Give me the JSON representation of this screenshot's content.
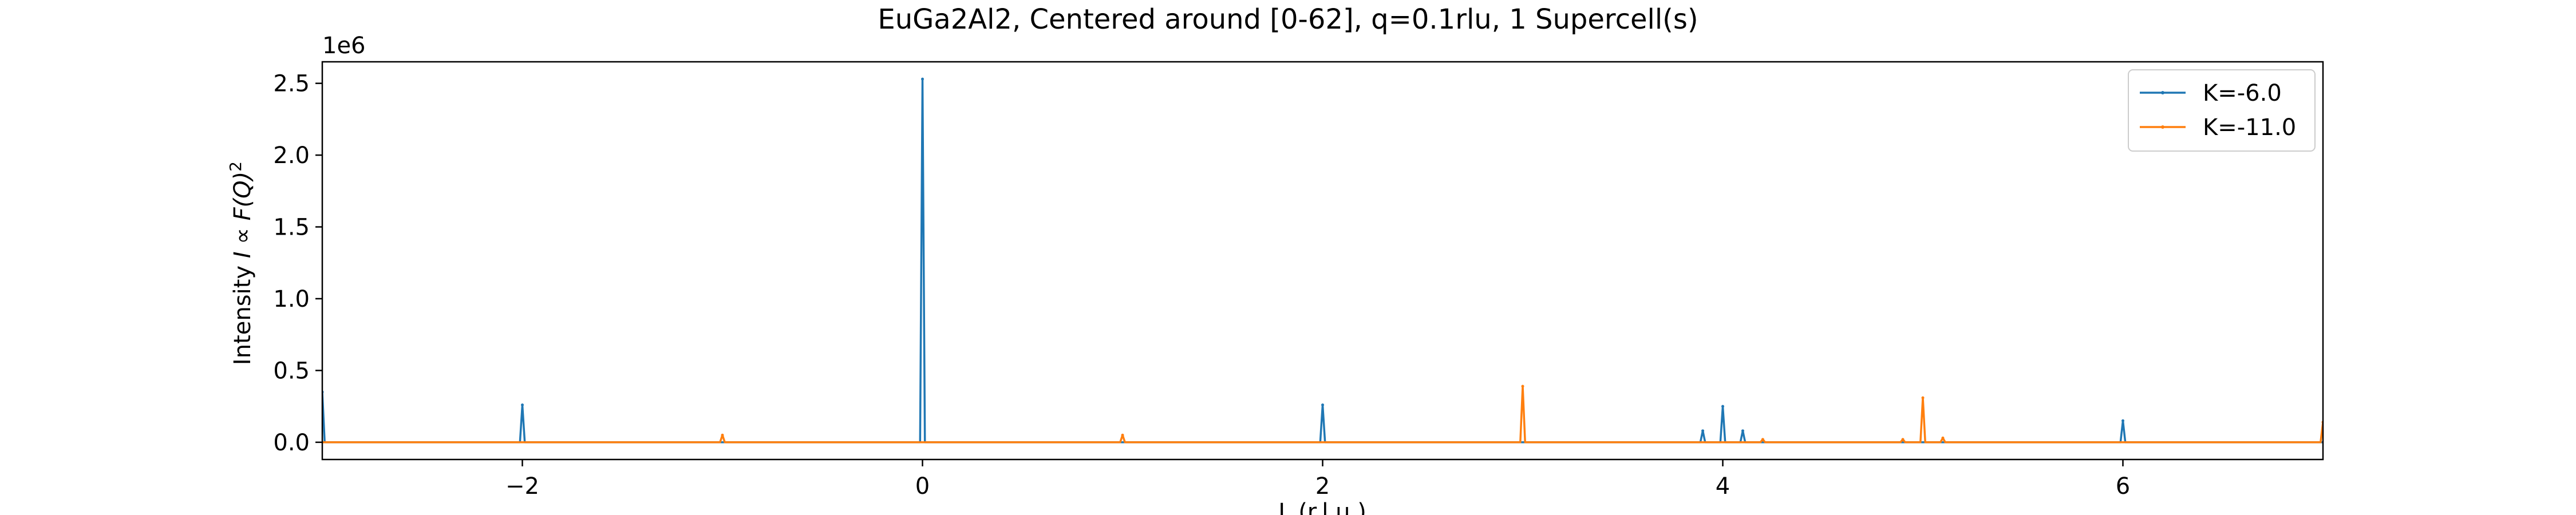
{
  "chart_data": {
    "type": "line",
    "title": "EuGa2Al2, Centered around [0-62], q=0.1rlu, 1 Supercell(s)",
    "xlabel": "L (r.l.u.)",
    "ylabel_prefix": "Intensity ",
    "ylabel_math": "I ∝ F(Q)",
    "ylabel_power": "2",
    "y_offset_label": "1e6",
    "xlim": [
      -3.0,
      7.0
    ],
    "ylim": [
      -0.12,
      2.65
    ],
    "y_scale_factor": 1000000,
    "xticks": [
      -2,
      0,
      2,
      4,
      6
    ],
    "xtick_labels": [
      "−2",
      "0",
      "2",
      "4",
      "6"
    ],
    "yticks": [
      0.0,
      0.5,
      1.0,
      1.5,
      2.0,
      2.5
    ],
    "ytick_labels": [
      "0.0",
      "0.5",
      "1.0",
      "1.5",
      "2.0",
      "2.5"
    ],
    "grid": false,
    "legend_position": "top-right",
    "series": [
      {
        "name": "K=-6.0",
        "color": "#1f77b4",
        "baseline": 0.0,
        "peaks": [
          {
            "x": -3.0,
            "y": 0.35
          },
          {
            "x": -2.0,
            "y": 0.26
          },
          {
            "x": 0.0,
            "y": 2.53
          },
          {
            "x": 2.0,
            "y": 0.26
          },
          {
            "x": 3.9,
            "y": 0.08
          },
          {
            "x": 4.0,
            "y": 0.25
          },
          {
            "x": 4.1,
            "y": 0.08
          },
          {
            "x": 6.0,
            "y": 0.15
          }
        ]
      },
      {
        "name": "K=-11.0",
        "color": "#ff7f0e",
        "baseline": 0.0,
        "peaks": [
          {
            "x": -1.0,
            "y": 0.05
          },
          {
            "x": 1.0,
            "y": 0.05
          },
          {
            "x": 3.0,
            "y": 0.39
          },
          {
            "x": 4.2,
            "y": 0.02
          },
          {
            "x": 4.9,
            "y": 0.02
          },
          {
            "x": 5.0,
            "y": 0.31
          },
          {
            "x": 5.1,
            "y": 0.03
          },
          {
            "x": 7.0,
            "y": 0.14
          }
        ]
      }
    ]
  }
}
